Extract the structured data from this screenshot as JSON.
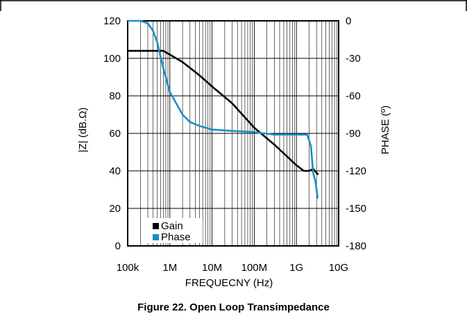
{
  "caption": "Figure 22. Open Loop Transimpedance",
  "chart_data": {
    "type": "line",
    "title": "",
    "xlabel": "FREQUECNY (Hz)",
    "ylabel_left": "|Z| (dB.Ω)",
    "ylabel_right": "PHASE (º)",
    "x_scale": "log",
    "xlim": [
      100000,
      10000000000
    ],
    "ylim_left": [
      0,
      120
    ],
    "ylim_right": [
      -180,
      0
    ],
    "x_ticks": [
      {
        "value": 100000,
        "label": "100k"
      },
      {
        "value": 1000000,
        "label": "1M"
      },
      {
        "value": 10000000,
        "label": "10M"
      },
      {
        "value": 100000000,
        "label": "100M"
      },
      {
        "value": 1000000000,
        "label": "1G"
      },
      {
        "value": 10000000000,
        "label": "10G"
      }
    ],
    "y_left_ticks": [
      0,
      20,
      40,
      60,
      80,
      100,
      120
    ],
    "y_right_ticks": [
      -180,
      -150,
      -120,
      -90,
      -60,
      -30,
      0
    ],
    "grid": true,
    "legend_position": "bottom-left",
    "colors": {
      "gain": "#000000",
      "phase": "#1a8fc4"
    },
    "series": [
      {
        "name": "Gain",
        "axis": "left",
        "x": [
          100000,
          200000,
          500000,
          700000,
          1000000,
          2000000,
          5000000,
          10000000,
          30000000,
          100000000,
          300000000,
          1000000000,
          1500000000,
          2000000000,
          2500000000,
          3000000000,
          3300000000
        ],
        "y": [
          104,
          104,
          104,
          104,
          102,
          98,
          91,
          85,
          76,
          63,
          54,
          43,
          40,
          40,
          41,
          39,
          38
        ]
      },
      {
        "name": "Phase",
        "axis": "right",
        "x": [
          100000,
          200000,
          300000,
          400000,
          500000,
          700000,
          1000000,
          2000000,
          3000000,
          5000000,
          10000000,
          30000000,
          100000000,
          300000000,
          1000000000,
          1800000000,
          2200000000,
          2500000000,
          2800000000,
          3000000000,
          3200000000
        ],
        "y": [
          0,
          0,
          -2,
          -8,
          -17,
          -38,
          -57,
          -75,
          -81,
          -84,
          -87,
          -88,
          -89,
          -91,
          -91,
          -91,
          -100,
          -122,
          -128,
          -135,
          -142
        ]
      }
    ]
  }
}
